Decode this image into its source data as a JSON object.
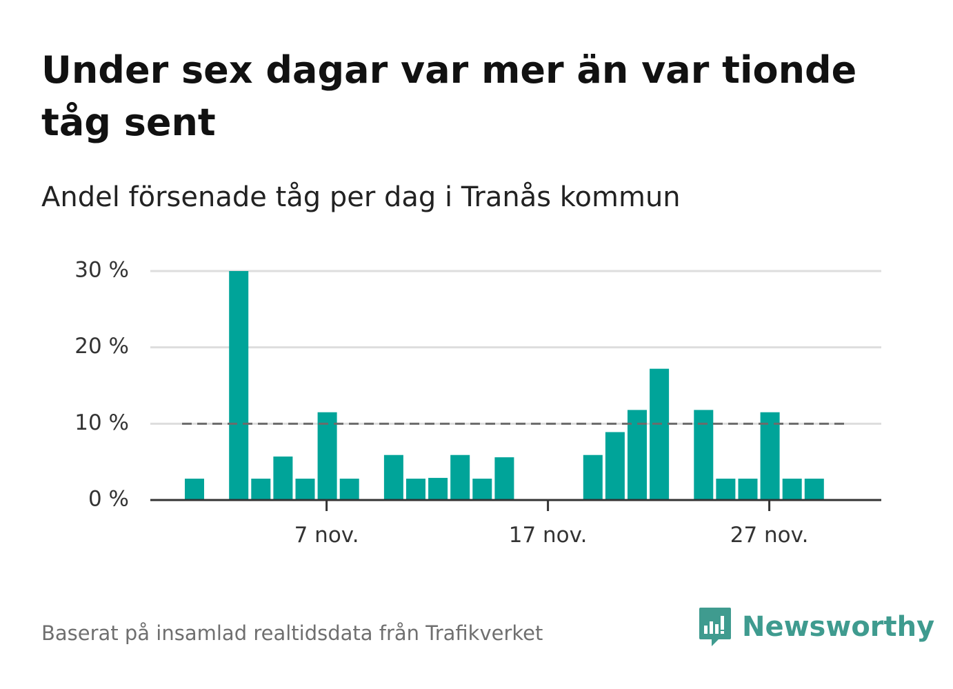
{
  "title": "Under sex dagar var mer än var tionde tåg sent",
  "subtitle": "Andel försenade tåg per dag i Tranås kommun",
  "footer": {
    "source": "Baserat på insamlad realtidsdata från Trafikverket",
    "brand": "Newsworthy",
    "brand_icon": "bar-chart-speech-bubble-icon"
  },
  "colors": {
    "bar": "#00a499",
    "grid": "#dddddd",
    "axis": "#333333",
    "reference": "#6b6b6b",
    "brand": "#3f9b8f"
  },
  "chart_data": {
    "type": "bar",
    "x_unit": "day of November",
    "x": [
      1,
      2,
      3,
      4,
      5,
      6,
      7,
      8,
      9,
      10,
      11,
      12,
      13,
      14,
      15,
      16,
      17,
      18,
      19,
      20,
      21,
      22,
      23,
      24,
      25,
      26,
      27,
      28,
      29,
      30
    ],
    "values": [
      2.8,
      null,
      30.0,
      2.8,
      5.7,
      2.8,
      11.5,
      2.8,
      null,
      5.9,
      2.8,
      2.9,
      5.9,
      2.8,
      5.6,
      null,
      null,
      null,
      5.9,
      8.9,
      11.8,
      17.2,
      null,
      11.8,
      2.8,
      2.8,
      11.5,
      2.8,
      2.8,
      null
    ],
    "ylim": [
      0,
      30
    ],
    "y_ticks": [
      0,
      10,
      20,
      30
    ],
    "y_tick_labels": [
      "0 %",
      "10 %",
      "20 %",
      "30 %"
    ],
    "x_ticks": [
      7,
      17,
      27
    ],
    "x_tick_labels": [
      "7 nov.",
      "17 nov.",
      "27 nov."
    ],
    "reference_line": {
      "value": 10,
      "style": "dashed"
    },
    "grid": true,
    "legend": "none"
  }
}
